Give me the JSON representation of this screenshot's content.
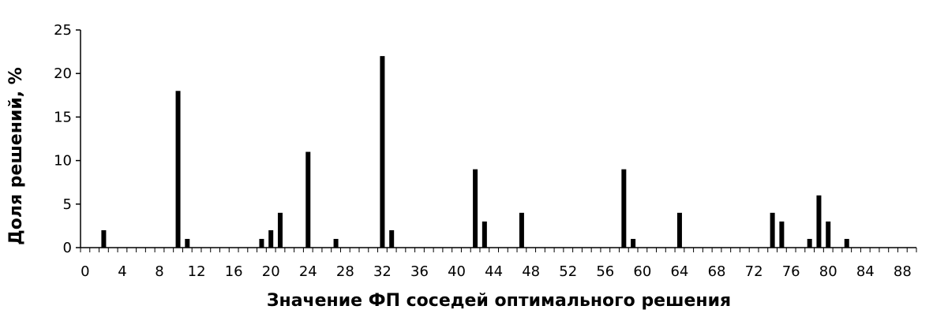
{
  "chart_data": {
    "type": "bar",
    "title": "",
    "xlabel": "Значение ФП соседей оптимального решения",
    "ylabel": "Доля решений, %",
    "xlim": [
      0,
      90
    ],
    "ylim": [
      0,
      25
    ],
    "yticks": [
      0,
      5,
      10,
      15,
      20,
      25
    ],
    "xticks": [
      0,
      4,
      8,
      12,
      16,
      20,
      24,
      28,
      32,
      36,
      40,
      44,
      48,
      52,
      56,
      60,
      64,
      68,
      72,
      76,
      80,
      84,
      88
    ],
    "grid": false,
    "legend": "none",
    "bar_color": "#000000",
    "x": [
      2,
      10,
      11,
      19,
      20,
      21,
      24,
      27,
      32,
      33,
      42,
      43,
      47,
      58,
      59,
      64,
      74,
      75,
      78,
      79,
      80,
      82
    ],
    "values": [
      2,
      18,
      1,
      1,
      2,
      4,
      11,
      1,
      22,
      2,
      9,
      3,
      4,
      9,
      1,
      4,
      4,
      3,
      1,
      6,
      3,
      1
    ]
  }
}
